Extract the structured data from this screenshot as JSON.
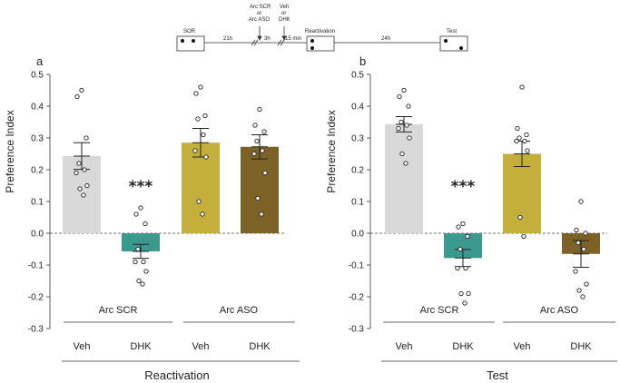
{
  "timeline": {
    "stages": [
      "SOR",
      "Reactivation",
      "Test"
    ],
    "intervals": [
      "21h",
      "3h",
      "15 min",
      "24h"
    ],
    "injection_1": [
      "Arc SCR",
      "or",
      "Arc ASO"
    ],
    "injection_2": [
      "Veh",
      "or",
      "DHK"
    ]
  },
  "chart_data": [
    {
      "type": "bar",
      "panel_label": "a",
      "title": "Reactivation",
      "ylabel": "Preference Index",
      "ylim": [
        -0.3,
        0.5
      ],
      "yticks": [
        "-0.3",
        "-0.2",
        "-0.1",
        "0.0",
        "0.1",
        "0.2",
        "0.3",
        "0.4",
        "0.5"
      ],
      "groups": [
        "Arc SCR",
        "Arc ASO"
      ],
      "categories": [
        "Veh",
        "DHK",
        "Veh",
        "DHK"
      ],
      "colors": [
        "#d9d9d9",
        "#3a9a8e",
        "#c4ae3c",
        "#7d6228"
      ],
      "values": [
        0.243,
        -0.057,
        0.285,
        0.272
      ],
      "sem": [
        0.042,
        0.022,
        0.045,
        0.038
      ],
      "significance": [
        "",
        "***",
        "",
        ""
      ],
      "points": [
        [
          0.45,
          0.43,
          0.3,
          0.22,
          0.2,
          0.19,
          0.15,
          0.14,
          0.12
        ],
        [
          0.08,
          0.06,
          0.03,
          -0.05,
          -0.09,
          -0.09,
          -0.12,
          -0.15,
          -0.16
        ],
        [
          0.46,
          0.44,
          0.37,
          0.36,
          0.31,
          0.26,
          0.24,
          0.1,
          0.06
        ],
        [
          0.39,
          0.34,
          0.32,
          0.29,
          0.26,
          0.25,
          0.19,
          0.11,
          0.06
        ]
      ]
    },
    {
      "type": "bar",
      "panel_label": "b",
      "title": "Test",
      "ylabel": "Preference Index",
      "ylim": [
        -0.3,
        0.5
      ],
      "yticks": [
        "-0.3",
        "-0.2",
        "-0.1",
        "0.0",
        "0.1",
        "0.2",
        "0.3",
        "0.4",
        "0.5"
      ],
      "groups": [
        "Arc SCR",
        "Arc ASO"
      ],
      "categories": [
        "Veh",
        "DHK",
        "Veh",
        "DHK"
      ],
      "colors": [
        "#d9d9d9",
        "#3a9a8e",
        "#c4ae3c",
        "#7d6228"
      ],
      "values": [
        0.343,
        -0.078,
        0.25,
        -0.065
      ],
      "sem": [
        0.024,
        0.027,
        0.04,
        0.042
      ],
      "significance": [
        "",
        "***",
        "",
        ""
      ],
      "points": [
        [
          0.45,
          0.43,
          0.4,
          0.35,
          0.34,
          0.33,
          0.3,
          0.25,
          0.22
        ],
        [
          0.03,
          0.02,
          -0.01,
          -0.05,
          -0.11,
          -0.11,
          -0.19,
          -0.19,
          -0.22
        ],
        [
          0.46,
          0.33,
          0.31,
          0.3,
          0.29,
          0.29,
          0.26,
          0.05,
          -0.01
        ],
        [
          0.1,
          0.01,
          0.0,
          -0.03,
          -0.05,
          -0.12,
          -0.16,
          -0.18,
          -0.2
        ]
      ]
    }
  ]
}
